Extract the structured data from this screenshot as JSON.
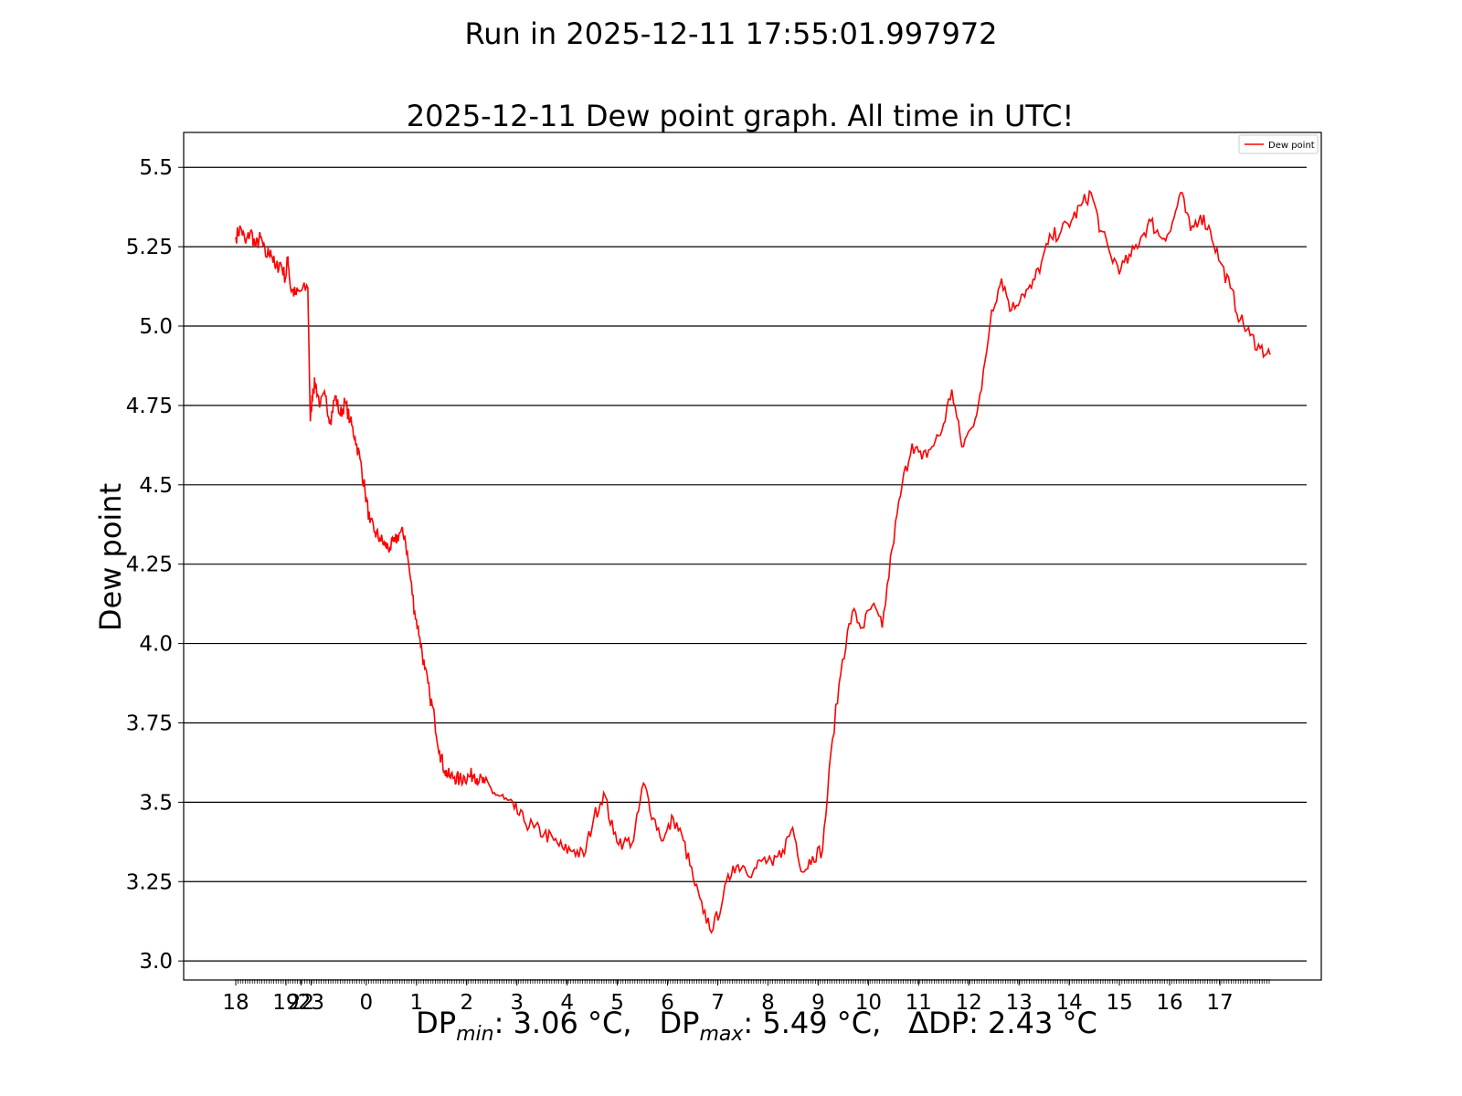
{
  "chart_data": {
    "type": "line",
    "suptitle": "Run in 2025-12-11 17:55:01.997972",
    "title": "2025-12-11 Dew point graph. All time in UTC!",
    "xlabel": "",
    "ylabel": "Dew point",
    "ylim": [
      2.94,
      5.61
    ],
    "xlim": [
      17.0,
      18.9
    ],
    "y_ticks": [
      "3.0",
      "3.25",
      "3.5",
      "3.75",
      "4.0",
      "4.25",
      "4.5",
      "4.75",
      "5.0",
      "5.25",
      "5.5"
    ],
    "x_ticks": [
      {
        "x": 18.0,
        "label": "18"
      },
      {
        "x": 19.0,
        "label": "19"
      },
      {
        "x": 19.3,
        "label": "22"
      },
      {
        "x": 19.5,
        "label": "23"
      },
      {
        "x": 20.6,
        "label": "0"
      },
      {
        "x": 21.6,
        "label": "1"
      },
      {
        "x": 22.6,
        "label": "2"
      },
      {
        "x": 23.6,
        "label": "3"
      },
      {
        "x": 24.6,
        "label": "4"
      },
      {
        "x": 25.6,
        "label": "5"
      },
      {
        "x": 26.6,
        "label": "6"
      },
      {
        "x": 27.6,
        "label": "7"
      },
      {
        "x": 28.6,
        "label": "8"
      },
      {
        "x": 29.6,
        "label": "9"
      },
      {
        "x": 30.6,
        "label": "10"
      },
      {
        "x": 31.6,
        "label": "11"
      },
      {
        "x": 32.6,
        "label": "12"
      },
      {
        "x": 33.6,
        "label": "13"
      },
      {
        "x": 34.6,
        "label": "14"
      },
      {
        "x": 35.6,
        "label": "15"
      },
      {
        "x": 36.6,
        "label": "16"
      },
      {
        "x": 37.6,
        "label": "17"
      }
    ],
    "grid": "horizontal",
    "legend_position": "top-right",
    "series": [
      {
        "name": "Dew point",
        "color": "#ff0000",
        "x": [
          18.0,
          18.1,
          18.2,
          18.3,
          18.4,
          18.5,
          18.6,
          18.7,
          18.8,
          18.9,
          19.0,
          19.05,
          19.1,
          19.2,
          19.3,
          19.45,
          19.5,
          19.55,
          19.6,
          19.7,
          19.8,
          19.9,
          20.0,
          20.1,
          20.2,
          20.3,
          20.4,
          20.5,
          20.6,
          20.7,
          20.8,
          20.9,
          21.0,
          21.1,
          21.2,
          21.3,
          21.4,
          21.5,
          21.6,
          21.7,
          21.8,
          21.9,
          22.0,
          22.1,
          22.2,
          22.3,
          22.4,
          22.5,
          22.6,
          22.7,
          22.8,
          22.9,
          23.0,
          23.2,
          23.4,
          23.6,
          23.8,
          24.0,
          24.2,
          24.4,
          24.6,
          24.8,
          25.0,
          25.2,
          25.4,
          25.6,
          25.8,
          26.0,
          26.2,
          26.4,
          26.6,
          26.8,
          27.0,
          27.2,
          27.4,
          27.6,
          27.8,
          28.0,
          28.2,
          28.4,
          28.6,
          28.8,
          29.0,
          29.2,
          29.4,
          29.6,
          29.8,
          30.0,
          30.2,
          30.4,
          30.6,
          30.8,
          31.0,
          31.2,
          31.4,
          31.6,
          31.8,
          32.0,
          32.2,
          32.4,
          32.6,
          32.8,
          33.0,
          33.2,
          33.4,
          33.6,
          33.8,
          34.0,
          34.2,
          34.4,
          34.6,
          34.8,
          35.0,
          35.2,
          35.4,
          35.6,
          35.8,
          36.0,
          36.2,
          36.4,
          36.6,
          36.8,
          37.0,
          37.2,
          37.4,
          37.6,
          37.8,
          38.0,
          38.2,
          38.4,
          38.6,
          38.8
        ],
        "values": [
          5.28,
          5.31,
          5.26,
          5.3,
          5.25,
          5.28,
          5.22,
          5.24,
          5.18,
          5.2,
          5.15,
          5.22,
          5.12,
          5.1,
          5.11,
          5.12,
          4.7,
          4.8,
          4.82,
          4.75,
          4.78,
          4.7,
          4.78,
          4.72,
          4.76,
          4.7,
          4.65,
          4.58,
          4.48,
          4.38,
          4.35,
          4.33,
          4.31,
          4.3,
          4.32,
          4.35,
          4.34,
          4.22,
          4.1,
          4.02,
          3.92,
          3.84,
          3.76,
          3.66,
          3.6,
          3.58,
          3.58,
          3.57,
          3.58,
          3.58,
          3.59,
          3.57,
          3.56,
          3.53,
          3.51,
          3.48,
          3.44,
          3.42,
          3.4,
          3.38,
          3.35,
          3.35,
          3.33,
          3.45,
          3.53,
          3.4,
          3.37,
          3.38,
          3.56,
          3.45,
          3.38,
          3.45,
          3.38,
          3.26,
          3.15,
          3.1,
          3.2,
          3.3,
          3.3,
          3.28,
          3.32,
          3.3,
          3.35,
          3.42,
          3.28,
          3.33,
          3.35,
          3.7,
          3.95,
          4.1,
          4.05,
          4.12,
          4.05,
          4.3,
          4.5,
          4.63,
          4.58,
          4.62,
          4.67,
          4.8,
          4.62,
          4.68,
          4.8,
          5.05,
          5.15,
          5.05,
          5.1,
          5.12,
          5.2,
          5.28,
          5.3,
          5.33,
          5.38,
          5.42,
          5.3,
          5.22,
          5.18,
          5.22,
          5.28,
          5.33,
          5.28,
          5.3,
          5.42,
          5.3,
          5.35,
          5.3,
          5.2,
          5.12,
          5.02,
          4.97,
          4.93,
          4.91
        ]
      }
    ],
    "stats_text": "DPmin: 3.06 °C,   DPmax: 5.49 °C,   ΔDP: 2.43 °C",
    "stats": {
      "min_label": "DP",
      "min_sub": "min",
      "min_value": ": 3.06 °C,",
      "max_label": "DP",
      "max_sub": "max",
      "max_value": ": 5.49 °C,",
      "delta_label": "ΔDP",
      "delta_value": ": 2.43 °C"
    }
  }
}
